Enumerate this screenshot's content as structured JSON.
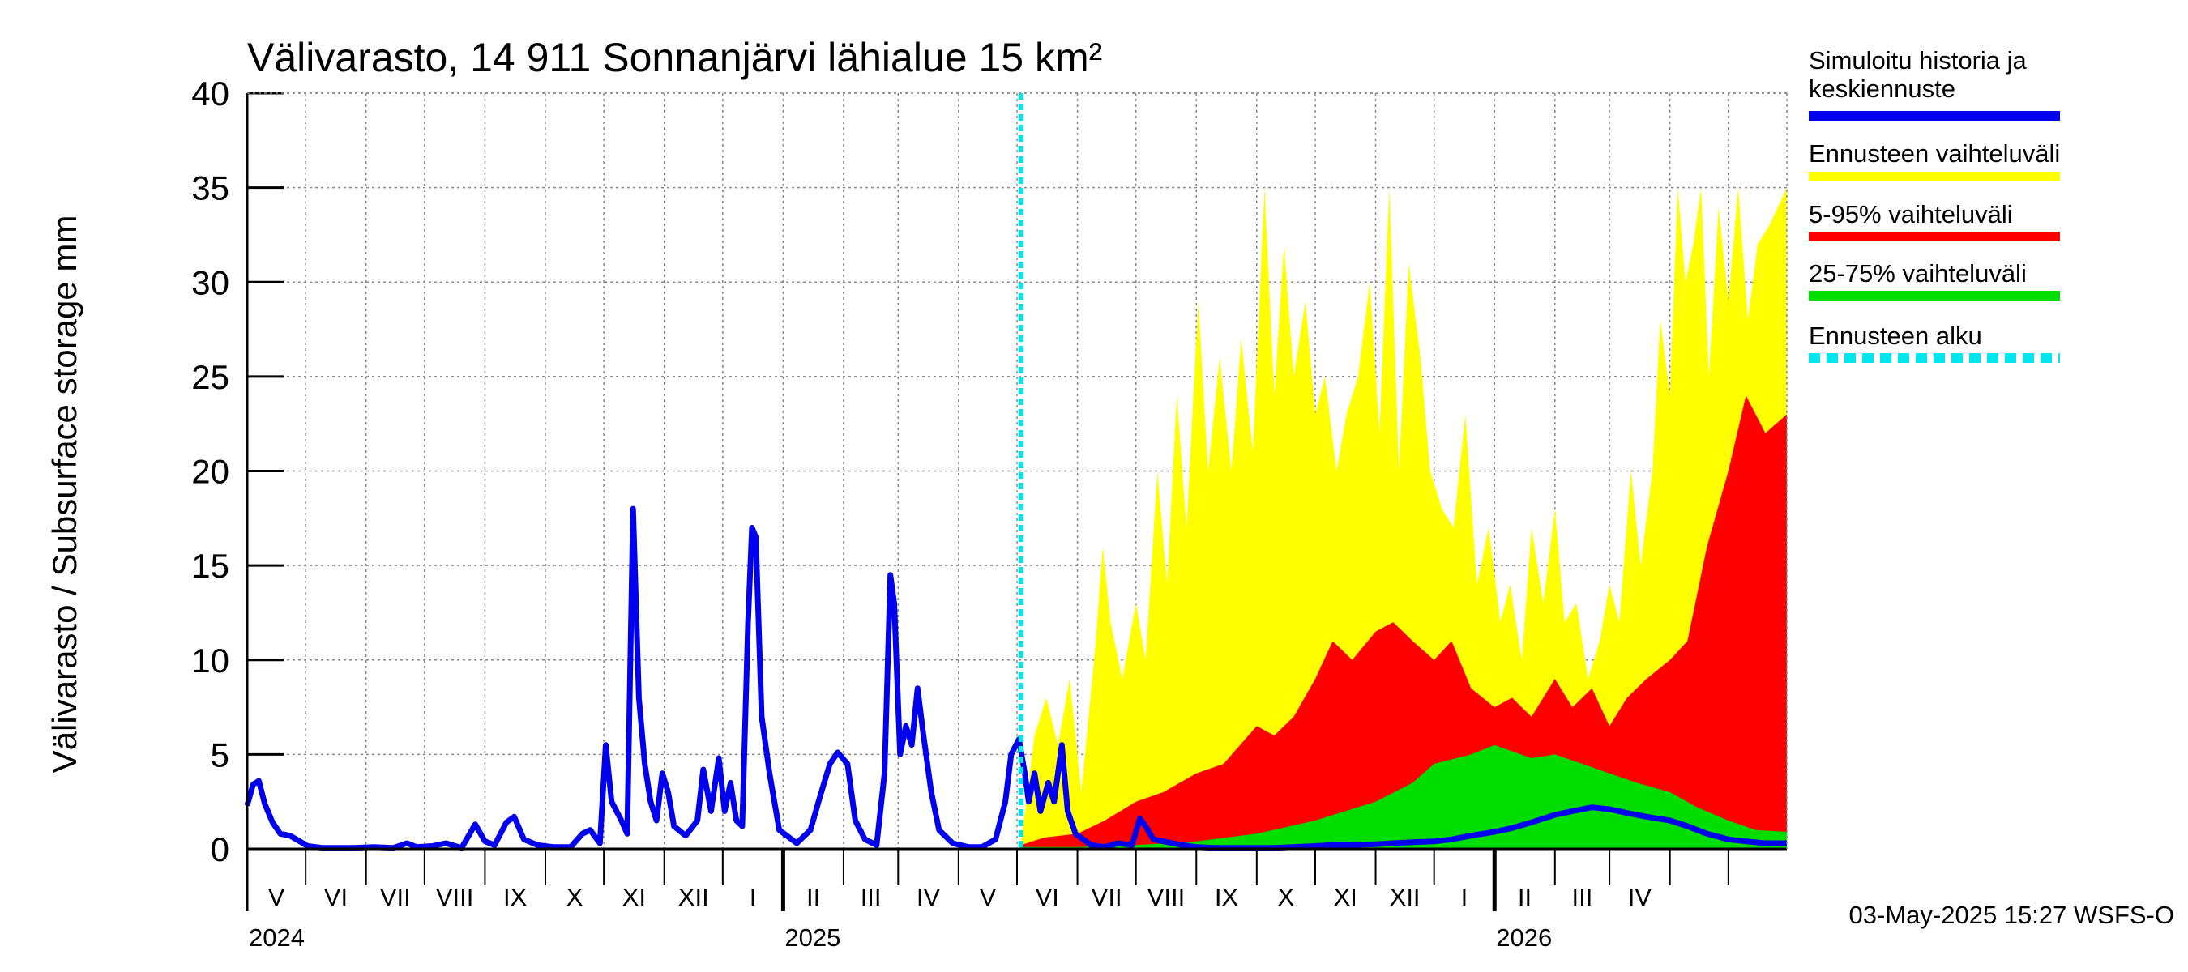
{
  "chart_data": {
    "type": "area",
    "title": "Välivarasto, 14 911 Sonnanjärvi lähialue 15 km²",
    "ylabel": "Välivarasto / Subsurface storage  mm",
    "ylim": [
      0,
      40
    ],
    "yticks": [
      0,
      5,
      10,
      15,
      20,
      25,
      30,
      35,
      40
    ],
    "grid": true,
    "legend_position": "right",
    "x_range": [
      "2024-04-01",
      "2026-05-31"
    ],
    "forecast_start": "2025-05-03",
    "month_labels": [
      "V",
      "VI",
      "VII",
      "VIII",
      "IX",
      "X",
      "XI",
      "XII",
      "I",
      "II",
      "III",
      "IV",
      "V",
      "VI",
      "VII",
      "VIII",
      "IX",
      "X",
      "XI",
      "XII",
      "I",
      "II",
      "III",
      "IV"
    ],
    "year_labels": [
      {
        "label": "2024",
        "date": "2024-04-01"
      },
      {
        "label": "2025",
        "date": "2025-01-01"
      },
      {
        "label": "2026",
        "date": "2026-01-01"
      }
    ],
    "series": [
      {
        "name": "Simuloitu historia ja keskiennuste",
        "color": "#0000ee",
        "points": [
          [
            "2024-04-01",
            2.3
          ],
          [
            "2024-04-04",
            3.4
          ],
          [
            "2024-04-07",
            3.6
          ],
          [
            "2024-04-10",
            2.4
          ],
          [
            "2024-04-14",
            1.4
          ],
          [
            "2024-04-18",
            0.8
          ],
          [
            "2024-04-23",
            0.7
          ],
          [
            "2024-04-28",
            0.4
          ],
          [
            "2024-05-02",
            0.15
          ],
          [
            "2024-05-10",
            0.05
          ],
          [
            "2024-05-25",
            0.05
          ],
          [
            "2024-06-05",
            0.1
          ],
          [
            "2024-06-15",
            0.05
          ],
          [
            "2024-06-22",
            0.3
          ],
          [
            "2024-06-27",
            0.1
          ],
          [
            "2024-07-05",
            0.15
          ],
          [
            "2024-07-12",
            0.3
          ],
          [
            "2024-07-20",
            0.05
          ],
          [
            "2024-07-27",
            1.3
          ],
          [
            "2024-08-01",
            0.4
          ],
          [
            "2024-08-06",
            0.2
          ],
          [
            "2024-08-12",
            1.4
          ],
          [
            "2024-08-16",
            1.7
          ],
          [
            "2024-08-21",
            0.5
          ],
          [
            "2024-08-28",
            0.2
          ],
          [
            "2024-09-05",
            0.1
          ],
          [
            "2024-09-14",
            0.1
          ],
          [
            "2024-09-20",
            0.8
          ],
          [
            "2024-09-24",
            1.0
          ],
          [
            "2024-09-29",
            0.3
          ],
          [
            "2024-10-02",
            5.5
          ],
          [
            "2024-10-05",
            2.5
          ],
          [
            "2024-10-10",
            1.5
          ],
          [
            "2024-10-13",
            0.8
          ],
          [
            "2024-10-16",
            18.0
          ],
          [
            "2024-10-19",
            8.0
          ],
          [
            "2024-10-22",
            4.5
          ],
          [
            "2024-10-25",
            2.5
          ],
          [
            "2024-10-28",
            1.5
          ],
          [
            "2024-10-31",
            4.0
          ],
          [
            "2024-11-03",
            3.0
          ],
          [
            "2024-11-06",
            1.2
          ],
          [
            "2024-11-12",
            0.7
          ],
          [
            "2024-11-18",
            1.5
          ],
          [
            "2024-11-21",
            4.2
          ],
          [
            "2024-11-25",
            2.0
          ],
          [
            "2024-11-29",
            4.8
          ],
          [
            "2024-12-02",
            2.0
          ],
          [
            "2024-12-05",
            3.5
          ],
          [
            "2024-12-08",
            1.5
          ],
          [
            "2024-12-11",
            1.2
          ],
          [
            "2024-12-14",
            12.0
          ],
          [
            "2024-12-16",
            17.0
          ],
          [
            "2024-12-18",
            16.5
          ],
          [
            "2024-12-21",
            7.0
          ],
          [
            "2024-12-25",
            4.0
          ],
          [
            "2024-12-30",
            1.0
          ],
          [
            "2025-01-08",
            0.3
          ],
          [
            "2025-01-15",
            1.0
          ],
          [
            "2025-01-20",
            2.8
          ],
          [
            "2025-01-25",
            4.5
          ],
          [
            "2025-01-29",
            5.1
          ],
          [
            "2025-02-03",
            4.5
          ],
          [
            "2025-02-07",
            1.5
          ],
          [
            "2025-02-12",
            0.5
          ],
          [
            "2025-02-18",
            0.2
          ],
          [
            "2025-02-22",
            4.0
          ],
          [
            "2025-02-25",
            14.5
          ],
          [
            "2025-02-27",
            13.0
          ],
          [
            "2025-03-02",
            5.0
          ],
          [
            "2025-03-05",
            6.5
          ],
          [
            "2025-03-08",
            5.5
          ],
          [
            "2025-03-11",
            8.5
          ],
          [
            "2025-03-14",
            6.0
          ],
          [
            "2025-03-18",
            3.0
          ],
          [
            "2025-03-22",
            1.0
          ],
          [
            "2025-03-29",
            0.3
          ],
          [
            "2025-04-06",
            0.1
          ],
          [
            "2025-04-13",
            0.1
          ],
          [
            "2025-04-20",
            0.5
          ],
          [
            "2025-04-25",
            2.5
          ],
          [
            "2025-04-28",
            5.0
          ],
          [
            "2025-05-02",
            5.8
          ],
          [
            "2025-05-05",
            4.0
          ],
          [
            "2025-05-07",
            2.5
          ],
          [
            "2025-05-10",
            4.0
          ],
          [
            "2025-05-13",
            2.0
          ],
          [
            "2025-05-17",
            3.5
          ],
          [
            "2025-05-20",
            2.5
          ],
          [
            "2025-05-24",
            5.5
          ],
          [
            "2025-05-27",
            2.0
          ],
          [
            "2025-05-31",
            0.8
          ],
          [
            "2025-06-08",
            0.2
          ],
          [
            "2025-06-15",
            0.1
          ],
          [
            "2025-06-22",
            0.3
          ],
          [
            "2025-06-29",
            0.2
          ],
          [
            "2025-07-03",
            1.6
          ],
          [
            "2025-07-06",
            1.2
          ],
          [
            "2025-07-10",
            0.5
          ],
          [
            "2025-07-15",
            0.4
          ],
          [
            "2025-07-20",
            0.3
          ],
          [
            "2025-07-25",
            0.2
          ],
          [
            "2025-08-01",
            0.1
          ],
          [
            "2025-08-10",
            0.05
          ],
          [
            "2025-08-20",
            0.05
          ],
          [
            "2025-09-01",
            0.05
          ],
          [
            "2025-09-10",
            0.05
          ],
          [
            "2025-09-20",
            0.1
          ],
          [
            "2025-10-01",
            0.15
          ],
          [
            "2025-10-10",
            0.2
          ],
          [
            "2025-10-20",
            0.2
          ],
          [
            "2025-11-01",
            0.25
          ],
          [
            "2025-11-10",
            0.3
          ],
          [
            "2025-11-20",
            0.35
          ],
          [
            "2025-12-01",
            0.4
          ],
          [
            "2025-12-10",
            0.5
          ],
          [
            "2025-12-20",
            0.7
          ],
          [
            "2026-01-01",
            0.9
          ],
          [
            "2026-01-10",
            1.1
          ],
          [
            "2026-01-20",
            1.4
          ],
          [
            "2026-02-01",
            1.8
          ],
          [
            "2026-02-10",
            2.0
          ],
          [
            "2026-02-20",
            2.2
          ],
          [
            "2026-03-01",
            2.1
          ],
          [
            "2026-03-10",
            1.9
          ],
          [
            "2026-03-20",
            1.7
          ],
          [
            "2026-04-01",
            1.5
          ],
          [
            "2026-04-10",
            1.2
          ],
          [
            "2026-04-20",
            0.8
          ],
          [
            "2026-05-01",
            0.5
          ],
          [
            "2026-05-10",
            0.4
          ],
          [
            "2026-05-20",
            0.3
          ],
          [
            "2026-05-31",
            0.3
          ]
        ]
      },
      {
        "name": "Ennusteen vaihteluväli",
        "color": "#ffff00",
        "points": [
          [
            "2025-05-03",
            0.3
          ],
          [
            "2025-05-10",
            6.0
          ],
          [
            "2025-05-16",
            8.0
          ],
          [
            "2025-05-22",
            5.5
          ],
          [
            "2025-05-28",
            9.0
          ],
          [
            "2025-06-03",
            3.0
          ],
          [
            "2025-06-10",
            10.5
          ],
          [
            "2025-06-14",
            16.0
          ],
          [
            "2025-06-18",
            12.0
          ],
          [
            "2025-06-24",
            9.0
          ],
          [
            "2025-07-01",
            13.0
          ],
          [
            "2025-07-06",
            10.0
          ],
          [
            "2025-07-12",
            20.0
          ],
          [
            "2025-07-17",
            14.0
          ],
          [
            "2025-07-22",
            24.0
          ],
          [
            "2025-07-27",
            17.0
          ],
          [
            "2025-08-02",
            29.0
          ],
          [
            "2025-08-07",
            20.0
          ],
          [
            "2025-08-13",
            26.0
          ],
          [
            "2025-08-19",
            20.0
          ],
          [
            "2025-08-24",
            27.0
          ],
          [
            "2025-08-30",
            21.0
          ],
          [
            "2025-09-05",
            35.0
          ],
          [
            "2025-09-10",
            24.0
          ],
          [
            "2025-09-15",
            32.0
          ],
          [
            "2025-09-20",
            25.0
          ],
          [
            "2025-09-26",
            29.0
          ],
          [
            "2025-10-01",
            23.0
          ],
          [
            "2025-10-06",
            25.0
          ],
          [
            "2025-10-12",
            20.0
          ],
          [
            "2025-10-17",
            23.0
          ],
          [
            "2025-10-23",
            25.0
          ],
          [
            "2025-10-29",
            30.0
          ],
          [
            "2025-11-03",
            22.0
          ],
          [
            "2025-11-08",
            35.0
          ],
          [
            "2025-11-13",
            20.0
          ],
          [
            "2025-11-18",
            31.0
          ],
          [
            "2025-11-24",
            26.0
          ],
          [
            "2025-11-29",
            20.0
          ],
          [
            "2025-12-05",
            18.0
          ],
          [
            "2025-12-11",
            17.0
          ],
          [
            "2025-12-17",
            23.0
          ],
          [
            "2025-12-23",
            14.0
          ],
          [
            "2025-12-29",
            17.0
          ],
          [
            "2026-01-04",
            12.0
          ],
          [
            "2026-01-09",
            14.0
          ],
          [
            "2026-01-15",
            10.0
          ],
          [
            "2026-01-20",
            17.0
          ],
          [
            "2026-01-26",
            13.0
          ],
          [
            "2026-02-01",
            18.0
          ],
          [
            "2026-02-06",
            12.0
          ],
          [
            "2026-02-12",
            13.0
          ],
          [
            "2026-02-18",
            9.0
          ],
          [
            "2026-02-24",
            11.0
          ],
          [
            "2026-03-01",
            14.0
          ],
          [
            "2026-03-06",
            12.0
          ],
          [
            "2026-03-12",
            20.0
          ],
          [
            "2026-03-17",
            15.0
          ],
          [
            "2026-03-23",
            20.0
          ],
          [
            "2026-03-27",
            28.0
          ],
          [
            "2026-04-01",
            24.0
          ],
          [
            "2026-04-05",
            35.0
          ],
          [
            "2026-04-09",
            30.0
          ],
          [
            "2026-04-13",
            32.0
          ],
          [
            "2026-04-17",
            35.0
          ],
          [
            "2026-04-21",
            25.0
          ],
          [
            "2026-04-26",
            34.0
          ],
          [
            "2026-05-01",
            29.0
          ],
          [
            "2026-05-06",
            35.0
          ],
          [
            "2026-05-11",
            28.0
          ],
          [
            "2026-05-16",
            32.0
          ],
          [
            "2026-05-22",
            33.0
          ],
          [
            "2026-05-31",
            35.0
          ]
        ]
      },
      {
        "name": "5-95% vaihteluväli",
        "color": "#ff0000",
        "points": [
          [
            "2025-05-03",
            0.2
          ],
          [
            "2025-05-15",
            0.6
          ],
          [
            "2025-06-01",
            0.8
          ],
          [
            "2025-06-15",
            1.5
          ],
          [
            "2025-07-01",
            2.5
          ],
          [
            "2025-07-15",
            3.0
          ],
          [
            "2025-08-01",
            4.0
          ],
          [
            "2025-08-15",
            4.5
          ],
          [
            "2025-09-01",
            6.5
          ],
          [
            "2025-09-10",
            6.0
          ],
          [
            "2025-09-20",
            7.0
          ],
          [
            "2025-10-01",
            9.0
          ],
          [
            "2025-10-10",
            11.0
          ],
          [
            "2025-10-20",
            10.0
          ],
          [
            "2025-11-01",
            11.5
          ],
          [
            "2025-11-10",
            12.0
          ],
          [
            "2025-11-20",
            11.0
          ],
          [
            "2025-12-01",
            10.0
          ],
          [
            "2025-12-10",
            11.0
          ],
          [
            "2025-12-20",
            8.5
          ],
          [
            "2026-01-01",
            7.5
          ],
          [
            "2026-01-10",
            8.0
          ],
          [
            "2026-01-20",
            7.0
          ],
          [
            "2026-02-01",
            9.0
          ],
          [
            "2026-02-10",
            7.5
          ],
          [
            "2026-02-20",
            8.5
          ],
          [
            "2026-03-01",
            6.5
          ],
          [
            "2026-03-10",
            8.0
          ],
          [
            "2026-03-20",
            9.0
          ],
          [
            "2026-04-01",
            10.0
          ],
          [
            "2026-04-10",
            11.0
          ],
          [
            "2026-04-20",
            16.0
          ],
          [
            "2026-05-01",
            20.0
          ],
          [
            "2026-05-10",
            24.0
          ],
          [
            "2026-05-20",
            22.0
          ],
          [
            "2026-05-31",
            23.0
          ]
        ]
      },
      {
        "name": "25-75% vaihteluväli",
        "color": "#00dd00",
        "points": [
          [
            "2025-05-03",
            0.1
          ],
          [
            "2025-06-01",
            0.1
          ],
          [
            "2025-07-01",
            0.2
          ],
          [
            "2025-08-01",
            0.4
          ],
          [
            "2025-09-01",
            0.8
          ],
          [
            "2025-10-01",
            1.5
          ],
          [
            "2025-11-01",
            2.5
          ],
          [
            "2025-11-20",
            3.5
          ],
          [
            "2025-12-01",
            4.5
          ],
          [
            "2025-12-20",
            5.0
          ],
          [
            "2026-01-01",
            5.5
          ],
          [
            "2026-01-20",
            4.8
          ],
          [
            "2026-02-01",
            5.0
          ],
          [
            "2026-02-15",
            4.5
          ],
          [
            "2026-03-01",
            4.0
          ],
          [
            "2026-03-15",
            3.5
          ],
          [
            "2026-04-01",
            3.0
          ],
          [
            "2026-04-15",
            2.2
          ],
          [
            "2026-05-01",
            1.5
          ],
          [
            "2026-05-15",
            1.0
          ],
          [
            "2026-05-31",
            0.9
          ]
        ]
      },
      {
        "name": "Ennusteen alku",
        "color": "#00e5ee",
        "style": "dashed"
      }
    ]
  },
  "legend": [
    {
      "label": "Simuloitu historia ja",
      "label2": "keskiennuste",
      "color": "#0000ee",
      "style": "solid"
    },
    {
      "label": "Ennusteen vaihteluväli",
      "color": "#ffff00",
      "style": "solid"
    },
    {
      "label": "5-95% vaihteluväli",
      "color": "#ff0000",
      "style": "solid"
    },
    {
      "label": "25-75% vaihteluväli",
      "color": "#00dd00",
      "style": "solid"
    },
    {
      "label": "Ennusteen alku",
      "color": "#00e5ee",
      "style": "dashed"
    }
  ],
  "footer": "03-May-2025 15:27 WSFS-O"
}
